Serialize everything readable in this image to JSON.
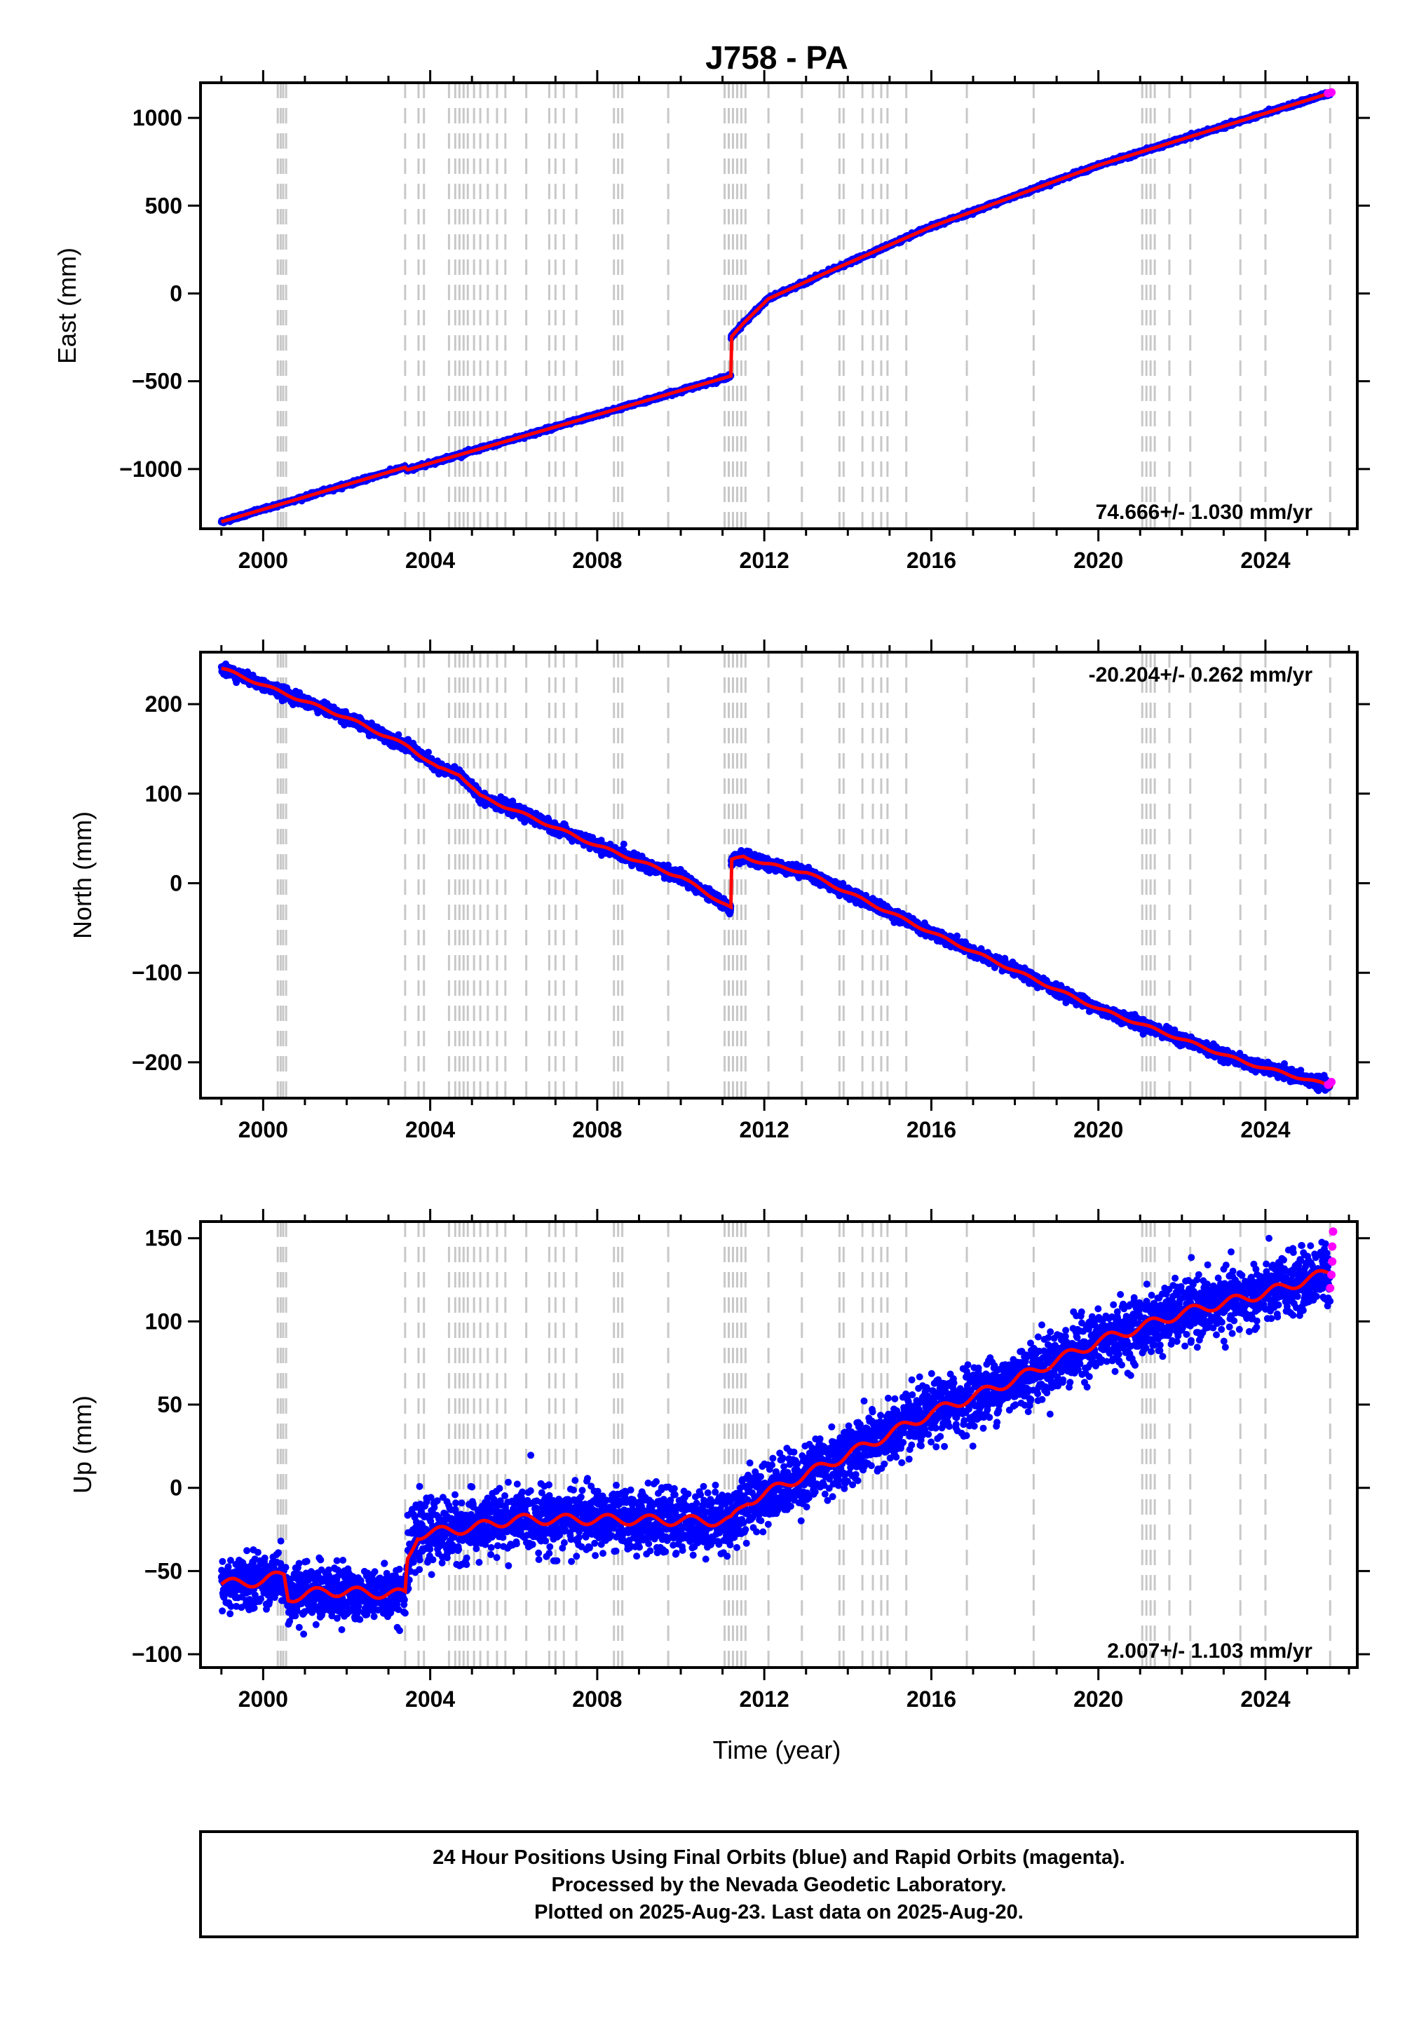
{
  "title": "J758 - PA",
  "xlabel": "Time (year)",
  "footer": {
    "line1": "24 Hour Positions Using Final Orbits (blue) and Rapid Orbits (magenta).",
    "line2": "Processed by the Nevada Geodetic Laboratory.",
    "line3": "Plotted on 2025-Aug-23. Last data on 2025-Aug-20."
  },
  "colors": {
    "final": "#0000ff",
    "rapid": "#ff00ff",
    "model": "#ff0000",
    "events": "#c8c8c8"
  },
  "chart_data": [
    {
      "type": "scatter",
      "name": "east",
      "ylabel": "East (mm)",
      "rate_label": "74.666+/- 1.030 mm/yr",
      "rate_position": "bottom-right",
      "xlim": [
        1998.5,
        2026.2
      ],
      "ylim": [
        -1340,
        1200
      ],
      "xticks": [
        2000,
        2004,
        2008,
        2012,
        2016,
        2020,
        2024
      ],
      "yticks": [
        -1000,
        -500,
        0,
        500,
        1000
      ],
      "yticklabels": [
        "−1000",
        "−500",
        "0",
        "500",
        "1000"
      ],
      "model": [
        [
          1999.0,
          -1300
        ],
        [
          2003.4,
          -990
        ],
        [
          2003.45,
          -1005
        ],
        [
          2011.2,
          -470
        ],
        [
          2011.2,
          -250
        ],
        [
          2011.5,
          -170
        ],
        [
          2012.1,
          -30
        ],
        [
          2013.5,
          120
        ],
        [
          2016.0,
          380
        ],
        [
          2020.0,
          730
        ],
        [
          2025.6,
          1145
        ]
      ],
      "noise": 5,
      "rapid_points": [
        [
          2025.5,
          1140
        ],
        [
          2025.58,
          1145
        ]
      ]
    },
    {
      "type": "scatter",
      "name": "north",
      "ylabel": "North (mm)",
      "rate_label": "-20.204+/- 0.262 mm/yr",
      "rate_position": "top-right",
      "xlim": [
        1998.5,
        2026.2
      ],
      "ylim": [
        -240,
        258
      ],
      "xticks": [
        2000,
        2004,
        2008,
        2012,
        2016,
        2020,
        2024
      ],
      "yticks": [
        -200,
        -100,
        0,
        100,
        200
      ],
      "yticklabels": [
        "−200",
        "−100",
        "0",
        "100",
        "200"
      ],
      "model": [
        [
          1999.0,
          240
        ],
        [
          2000.5,
          212
        ],
        [
          2002.0,
          185
        ],
        [
          2003.5,
          152
        ],
        [
          2004.2,
          128
        ],
        [
          2004.7,
          122
        ],
        [
          2005.2,
          97
        ],
        [
          2006.5,
          72
        ],
        [
          2008.0,
          42
        ],
        [
          2010.0,
          7
        ],
        [
          2011.2,
          -28
        ],
        [
          2011.2,
          25
        ],
        [
          2011.5,
          30
        ],
        [
          2012.0,
          22
        ],
        [
          2013.0,
          12
        ],
        [
          2016.0,
          -55
        ],
        [
          2020.0,
          -140
        ],
        [
          2023.5,
          -200
        ],
        [
          2025.6,
          -227
        ]
      ],
      "noise": 3,
      "rapid_points": [
        [
          2025.5,
          -225
        ],
        [
          2025.58,
          -222
        ]
      ]
    },
    {
      "type": "scatter",
      "name": "up",
      "ylabel": "Up (mm)",
      "rate_label": "2.007+/- 1.103 mm/yr",
      "rate_position": "bottom-right",
      "xlim": [
        1998.5,
        2026.2
      ],
      "ylim": [
        -108,
        160
      ],
      "xticks": [
        2000,
        2004,
        2008,
        2012,
        2016,
        2020,
        2024
      ],
      "yticks": [
        -100,
        -50,
        0,
        50,
        100,
        150
      ],
      "yticklabels": [
        "−100",
        "−50",
        "0",
        "50",
        "100",
        "150"
      ],
      "model": [
        [
          1999.0,
          -58
        ],
        [
          2000.0,
          -56
        ],
        [
          2000.5,
          -52
        ],
        [
          2000.6,
          -66
        ],
        [
          2001.5,
          -62
        ],
        [
          2003.4,
          -64
        ],
        [
          2003.45,
          -44
        ],
        [
          2003.7,
          -28
        ],
        [
          2005.0,
          -24
        ],
        [
          2006.0,
          -19
        ],
        [
          2008.0,
          -19
        ],
        [
          2011.2,
          -20
        ],
        [
          2011.6,
          -8
        ],
        [
          2012.5,
          2
        ],
        [
          2014.0,
          20
        ],
        [
          2016.0,
          45
        ],
        [
          2018.0,
          65
        ],
        [
          2020.0,
          88
        ],
        [
          2022.0,
          105
        ],
        [
          2024.0,
          117
        ],
        [
          2025.6,
          130
        ]
      ],
      "noise": 9,
      "rapid_points": [
        [
          2025.55,
          120
        ],
        [
          2025.58,
          128
        ],
        [
          2025.6,
          136
        ],
        [
          2025.6,
          145
        ],
        [
          2025.62,
          154
        ]
      ]
    }
  ],
  "event_lines": [
    2000.35,
    2000.42,
    2000.48,
    2000.55,
    2003.4,
    2003.72,
    2003.85,
    2004.45,
    2004.6,
    2004.7,
    2004.8,
    2004.9,
    2005.05,
    2005.2,
    2005.38,
    2005.6,
    2005.8,
    2006.3,
    2006.85,
    2007.0,
    2007.2,
    2007.5,
    2008.4,
    2008.5,
    2008.6,
    2009.7,
    2011.05,
    2011.15,
    2011.25,
    2011.35,
    2011.45,
    2011.55,
    2012.1,
    2012.9,
    2013.8,
    2013.9,
    2014.35,
    2014.6,
    2014.8,
    2014.95,
    2015.4,
    2016.85,
    2018.45,
    2021.05,
    2021.15,
    2021.25,
    2021.35,
    2021.7,
    2022.2,
    2023.4,
    2024.0,
    2025.55
  ]
}
